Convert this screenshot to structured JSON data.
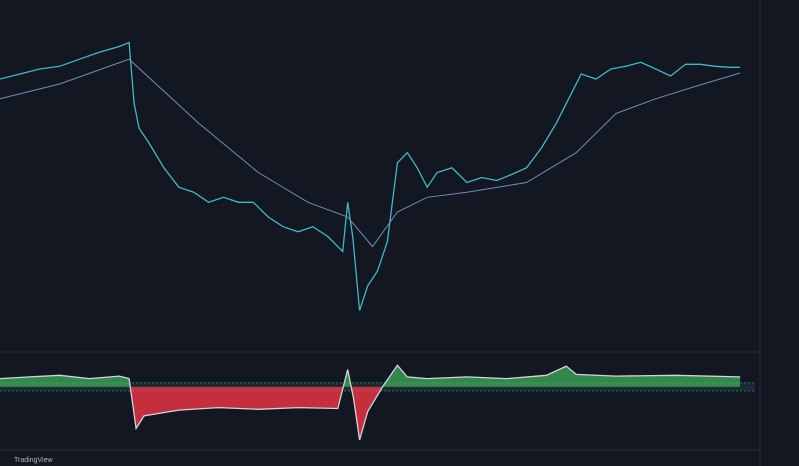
{
  "chart_data": [
    {
      "type": "line",
      "x": [
        0,
        20,
        40,
        60,
        80,
        100,
        120,
        130,
        135,
        140,
        150,
        165,
        180,
        195,
        210,
        225,
        240,
        255,
        270,
        285,
        300,
        315,
        330,
        345,
        350,
        355,
        362,
        370,
        380,
        390,
        400,
        410,
        420,
        430,
        440,
        455,
        470,
        485,
        500,
        515,
        530,
        545,
        560,
        575,
        585,
        600,
        615,
        630,
        645,
        660,
        675,
        690,
        705,
        720,
        735,
        745
      ],
      "xlim": [
        0,
        760
      ],
      "ylim": [
        0,
        100
      ],
      "series": [
        {
          "color": "#3fb8c9",
          "values": [
            79.4,
            80.9,
            82.4,
            83.2,
            85.3,
            87.4,
            89.1,
            90.3,
            72.1,
            64.7,
            60.3,
            52.9,
            47.1,
            45.6,
            42.6,
            44.1,
            42.6,
            42.6,
            38.2,
            35.3,
            33.8,
            35.3,
            32.4,
            27.9,
            42.6,
            32.4,
            10.3,
            17.6,
            22.1,
            30.9,
            54.4,
            57.4,
            52.9,
            47.1,
            51.5,
            52.9,
            48.5,
            50,
            49.1,
            50.9,
            52.9,
            58.8,
            66.2,
            75,
            80.9,
            79.4,
            82.4,
            83.2,
            84.4,
            82.4,
            80.3,
            83.8,
            83.8,
            83.2,
            82.9,
            82.9
          ]
        },
        {
          "color": "#6b8fb8",
          "x": [
            0,
            60,
            130,
            200,
            260,
            310,
            350,
            375,
            400,
            430,
            470,
            530,
            580,
            620,
            660,
            700,
            745
          ],
          "values": [
            73.5,
            77.9,
            85.3,
            66.2,
            51.5,
            42.6,
            38.2,
            29.4,
            39.7,
            44.1,
            45.6,
            48.5,
            57.4,
            69.1,
            73.5,
            77.2,
            81.2
          ]
        }
      ]
    },
    {
      "type": "area",
      "x": [
        0,
        30,
        60,
        90,
        120,
        130,
        137,
        145,
        180,
        220,
        260,
        300,
        340,
        350,
        356,
        362,
        370,
        385,
        400,
        410,
        430,
        470,
        510,
        550,
        570,
        580,
        620,
        680,
        745
      ],
      "xlim": [
        0,
        760
      ],
      "ylim": [
        0,
        100
      ],
      "levels": [
        75,
        65
      ],
      "series": [
        {
          "color": "#d1d4dc",
          "values": [
            80,
            82,
            84,
            80,
            83,
            80,
            20,
            35,
            42,
            45,
            43,
            45,
            44,
            91,
            55,
            6,
            40,
            70,
            96,
            82,
            80,
            82,
            80,
            84,
            95,
            85,
            83,
            84,
            82
          ]
        }
      ]
    }
  ],
  "watermark": "TradingView"
}
